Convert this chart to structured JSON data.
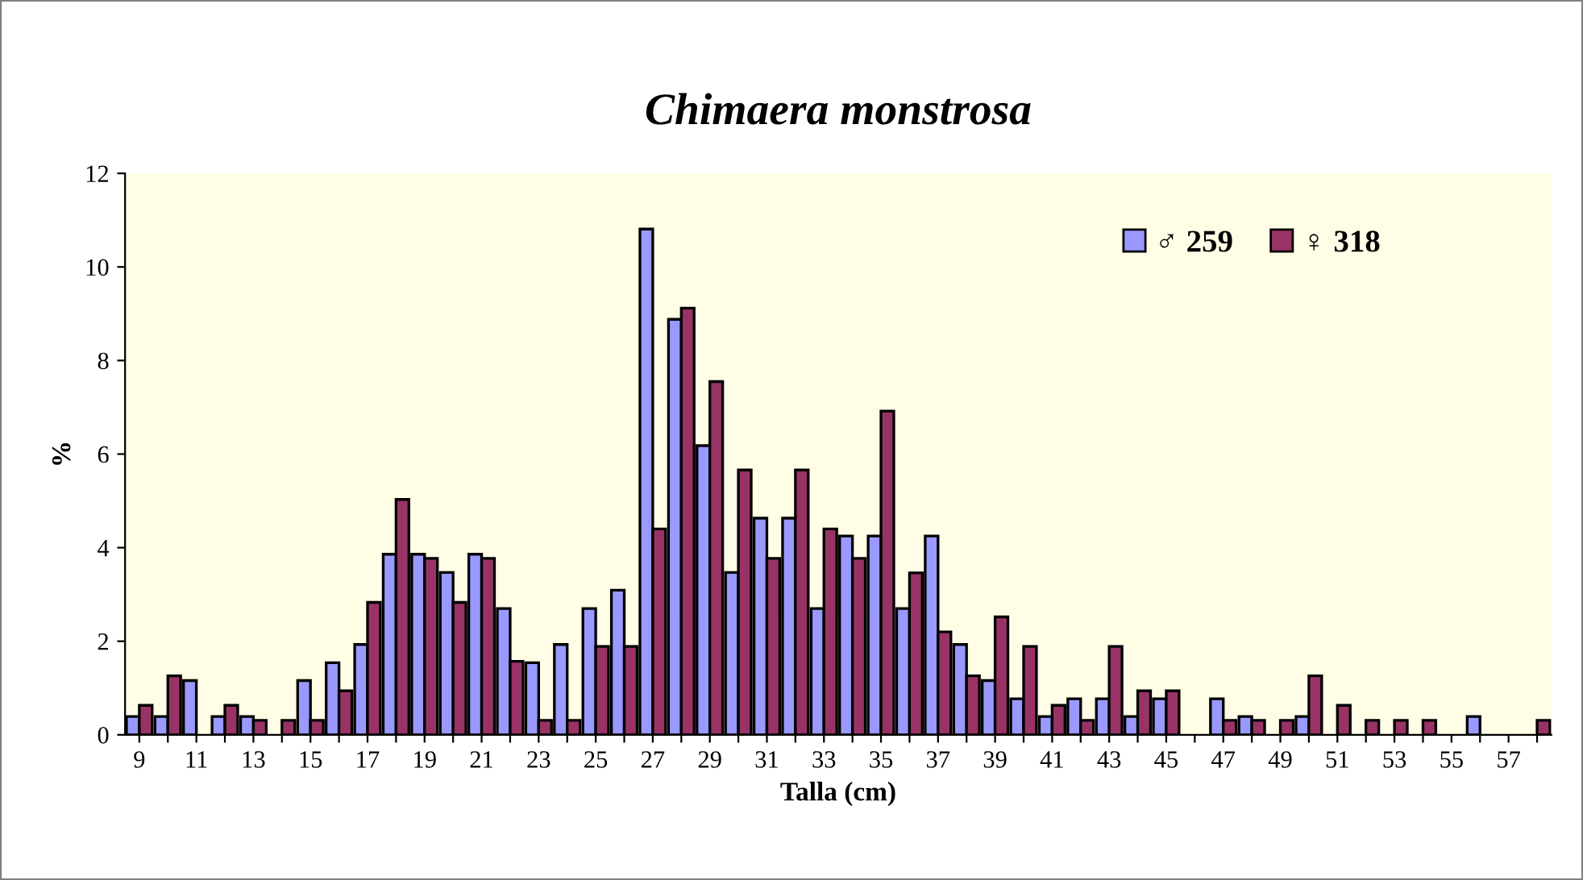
{
  "chart_data": {
    "type": "bar",
    "title": "Chimaera monstrosa",
    "xlabel": "Talla (cm)",
    "ylabel": "%",
    "categories": [
      "9",
      null,
      "11",
      null,
      "13",
      null,
      "15",
      null,
      "17",
      null,
      "19",
      null,
      "21",
      null,
      "23",
      null,
      "25",
      null,
      "27",
      null,
      "29",
      null,
      "31",
      null,
      "33",
      null,
      "35",
      null,
      "37",
      null,
      "39",
      null,
      "41",
      null,
      "43",
      null,
      "45",
      null,
      "47",
      null,
      "49",
      null,
      "51",
      null,
      "53",
      null,
      "55",
      null,
      "57",
      null
    ],
    "series": [
      {
        "name": "♂ 259",
        "color": "#9999ff",
        "values": [
          0.39,
          0.39,
          1.16,
          0.39,
          0.39,
          null,
          1.16,
          1.54,
          1.93,
          3.86,
          3.86,
          3.47,
          3.86,
          2.7,
          1.54,
          1.93,
          2.7,
          3.09,
          10.81,
          8.88,
          6.18,
          3.47,
          4.63,
          4.63,
          2.7,
          4.25,
          4.25,
          2.7,
          4.25,
          1.93,
          1.16,
          0.77,
          0.39,
          0.77,
          0.77,
          0.39,
          0.77,
          null,
          0.77,
          0.39,
          null,
          0.39,
          null,
          null,
          null,
          null,
          null,
          0.39,
          null,
          null
        ]
      },
      {
        "name": "♀ 318",
        "color": "#993366",
        "values": [
          0.63,
          1.26,
          null,
          0.63,
          0.31,
          0.31,
          0.31,
          0.94,
          2.83,
          5.03,
          3.77,
          2.83,
          3.77,
          1.57,
          0.31,
          0.31,
          1.89,
          1.89,
          4.4,
          9.12,
          7.55,
          5.66,
          3.77,
          5.66,
          4.4,
          3.77,
          6.92,
          3.46,
          2.2,
          1.26,
          2.52,
          1.89,
          0.63,
          0.31,
          1.89,
          0.94,
          0.94,
          null,
          0.31,
          0.31,
          0.31,
          1.26,
          0.63,
          0.31,
          0.31,
          0.31,
          null,
          null,
          null,
          0.31
        ]
      }
    ],
    "ylim": [
      0,
      12
    ],
    "yticks": [
      0,
      2,
      4,
      6,
      8,
      10,
      12
    ],
    "grid": false,
    "legend": "top right"
  }
}
